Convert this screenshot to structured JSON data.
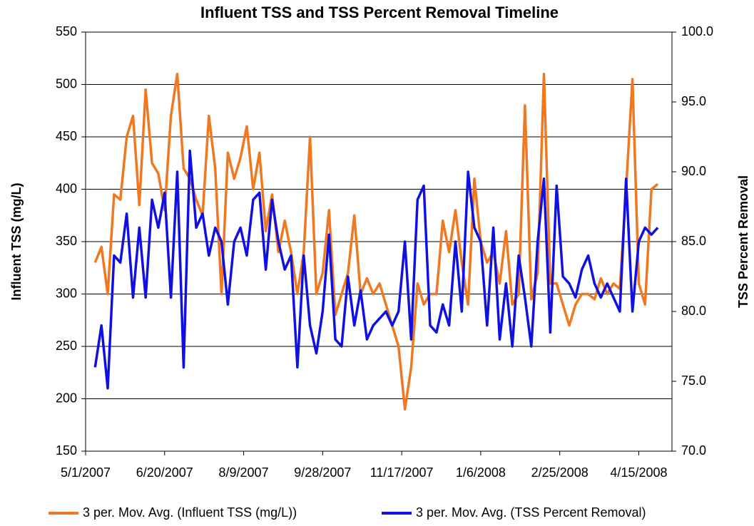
{
  "chart_data": {
    "type": "line",
    "title": "Influent TSS and TSS Percent Removal Timeline",
    "y_label": "Influent TSS (mg/L)",
    "y2_label": "TSS Percent Removal",
    "x": [
      "5/7/2007",
      "5/11/2007",
      "5/15/2007",
      "5/19/2007",
      "5/23/2007",
      "5/27/2007",
      "5/31/2007",
      "6/4/2007",
      "6/8/2007",
      "6/12/2007",
      "6/16/2007",
      "6/20/2007",
      "6/24/2007",
      "6/28/2007",
      "7/2/2007",
      "7/6/2007",
      "7/10/2007",
      "7/14/2007",
      "7/18/2007",
      "7/22/2007",
      "7/26/2007",
      "7/30/2007",
      "8/3/2007",
      "8/7/2007",
      "8/11/2007",
      "8/15/2007",
      "8/19/2007",
      "8/23/2007",
      "8/27/2007",
      "8/31/2007",
      "9/4/2007",
      "9/8/2007",
      "9/12/2007",
      "9/16/2007",
      "9/20/2007",
      "9/24/2007",
      "9/28/2007",
      "10/2/2007",
      "10/6/2007",
      "10/10/2007",
      "10/14/2007",
      "10/18/2007",
      "10/22/2007",
      "10/26/2007",
      "10/30/2007",
      "11/3/2007",
      "11/7/2007",
      "11/11/2007",
      "11/15/2007",
      "11/19/2007",
      "11/23/2007",
      "11/27/2007",
      "12/1/2007",
      "12/5/2007",
      "12/9/2007",
      "12/13/2007",
      "12/17/2007",
      "12/21/2007",
      "12/25/2007",
      "12/29/2007",
      "1/2/2008",
      "1/6/2008",
      "1/10/2008",
      "1/14/2008",
      "1/18/2008",
      "1/22/2008",
      "1/26/2008",
      "1/30/2008",
      "2/3/2008",
      "2/7/2008",
      "2/11/2008",
      "2/15/2008",
      "2/19/2008",
      "2/23/2008",
      "2/27/2008",
      "3/2/2008",
      "3/6/2008",
      "3/10/2008",
      "3/14/2008",
      "3/18/2008",
      "3/22/2008",
      "3/26/2008",
      "3/30/2008",
      "4/3/2008",
      "4/7/2008",
      "4/11/2008",
      "4/15/2008",
      "4/19/2008",
      "4/23/2008",
      "4/27/2008"
    ],
    "series": [
      {
        "name": "3 per. Mov. Avg. (Influent TSS (mg/L))",
        "color": "#f07820",
        "axis": "y",
        "values": [
          330,
          345,
          300,
          395,
          390,
          450,
          470,
          385,
          495,
          425,
          415,
          380,
          470,
          510,
          420,
          410,
          390,
          375,
          470,
          420,
          300,
          435,
          410,
          430,
          460,
          400,
          435,
          360,
          395,
          340,
          370,
          340,
          300,
          340,
          450,
          300,
          320,
          380,
          280,
          300,
          320,
          375,
          300,
          315,
          300,
          310,
          290,
          270,
          250,
          190,
          230,
          310,
          290,
          300,
          300,
          370,
          340,
          380,
          330,
          290,
          410,
          350,
          330,
          340,
          310,
          360,
          290,
          300,
          480,
          295,
          320,
          510,
          310,
          310,
          290,
          270,
          290,
          300,
          300,
          295,
          315,
          300,
          310,
          305,
          400,
          505,
          310,
          290,
          400,
          405
        ]
      },
      {
        "name": "3 per. Mov. Avg. (TSS Percent Removal)",
        "color": "#1010e0",
        "axis": "y2",
        "values": [
          76,
          79,
          74.5,
          84,
          83.5,
          87,
          81,
          86,
          81,
          88,
          86,
          88.5,
          81,
          90,
          76,
          91.5,
          86,
          87,
          84,
          86,
          85,
          80.5,
          85,
          86,
          84,
          88,
          88.5,
          83,
          88,
          85,
          83,
          84,
          76,
          84,
          79,
          77,
          80,
          85.5,
          78,
          77.5,
          82.5,
          79,
          81.5,
          78,
          79,
          79.5,
          80,
          79,
          80,
          85,
          78,
          88,
          89,
          79,
          78.5,
          80.5,
          79,
          85,
          80,
          90,
          86,
          85,
          79,
          86,
          78,
          82,
          77.5,
          84,
          81,
          77.5,
          85,
          89.5,
          78.5,
          89,
          82.5,
          82,
          81,
          83,
          84,
          82,
          81,
          82,
          81,
          80,
          89.5,
          80,
          85,
          86,
          85.5,
          86
        ]
      }
    ],
    "xlim": [
      "5/1/2007",
      "5/6/2008"
    ],
    "xticks": [
      "5/1/2007",
      "6/20/2007",
      "8/9/2007",
      "9/28/2007",
      "11/17/2007",
      "1/6/2008",
      "2/25/2008",
      "4/15/2008"
    ],
    "ylim": [
      150,
      550
    ],
    "yticks": [
      150,
      200,
      250,
      300,
      350,
      400,
      450,
      500,
      550
    ],
    "y2lim": [
      70,
      100
    ],
    "y2ticks": [
      {
        "value": 70,
        "label": "70.0"
      },
      {
        "value": 75,
        "label": "75.0"
      },
      {
        "value": 80,
        "label": "80.0"
      },
      {
        "value": 85,
        "label": "85.0"
      },
      {
        "value": 90,
        "label": "90.0"
      },
      {
        "value": 95,
        "label": "95.0"
      },
      {
        "value": 100,
        "label": "100.0"
      }
    ],
    "grid": true,
    "legend": "bottom"
  }
}
